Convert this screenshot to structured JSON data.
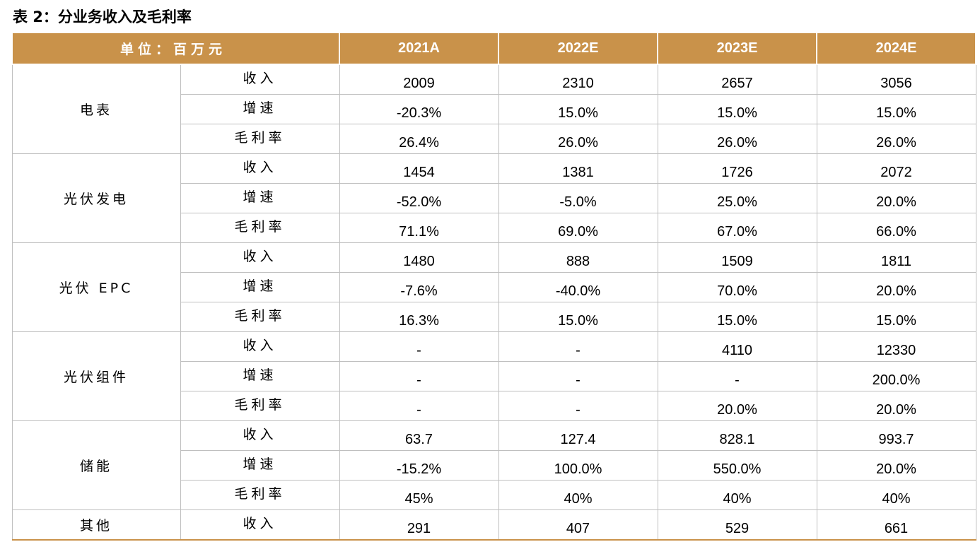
{
  "title": "表 2：分业务收入及毛利率",
  "header": {
    "unit_label": "单位：百万元",
    "years": [
      "2021A",
      "2022E",
      "2023E",
      "2024E"
    ]
  },
  "segments": [
    {
      "name": "电表",
      "rows": [
        {
          "metric": "收入",
          "values": [
            "2009",
            "2310",
            "2657",
            "3056"
          ]
        },
        {
          "metric": "增速",
          "values": [
            "-20.3%",
            "15.0%",
            "15.0%",
            "15.0%"
          ]
        },
        {
          "metric": "毛利率",
          "values": [
            "26.4%",
            "26.0%",
            "26.0%",
            "26.0%"
          ]
        }
      ]
    },
    {
      "name": "光伏发电",
      "rows": [
        {
          "metric": "收入",
          "values": [
            "1454",
            "1381",
            "1726",
            "2072"
          ]
        },
        {
          "metric": "增速",
          "values": [
            "-52.0%",
            "-5.0%",
            "25.0%",
            "20.0%"
          ]
        },
        {
          "metric": "毛利率",
          "values": [
            "71.1%",
            "69.0%",
            "67.0%",
            "66.0%"
          ]
        }
      ]
    },
    {
      "name": "光伏 EPC",
      "rows": [
        {
          "metric": "收入",
          "values": [
            "1480",
            "888",
            "1509",
            "1811"
          ]
        },
        {
          "metric": "增速",
          "values": [
            "-7.6%",
            "-40.0%",
            "70.0%",
            "20.0%"
          ]
        },
        {
          "metric": "毛利率",
          "values": [
            "16.3%",
            "15.0%",
            "15.0%",
            "15.0%"
          ]
        }
      ]
    },
    {
      "name": "光伏组件",
      "rows": [
        {
          "metric": "收入",
          "values": [
            "-",
            "-",
            "4110",
            "12330"
          ]
        },
        {
          "metric": "增速",
          "values": [
            "-",
            "-",
            "-",
            "200.0%"
          ]
        },
        {
          "metric": "毛利率",
          "values": [
            "-",
            "-",
            "20.0%",
            "20.0%"
          ]
        }
      ]
    },
    {
      "name": "储能",
      "rows": [
        {
          "metric": "收入",
          "values": [
            "63.7",
            "127.4",
            "828.1",
            "993.7"
          ]
        },
        {
          "metric": "增速",
          "values": [
            "-15.2%",
            "100.0%",
            "550.0%",
            "20.0%"
          ]
        },
        {
          "metric": "毛利率",
          "values": [
            "45%",
            "40%",
            "40%",
            "40%"
          ]
        }
      ]
    },
    {
      "name": "其他",
      "rows": [
        {
          "metric": "收入",
          "values": [
            "291",
            "407",
            "529",
            "661"
          ]
        }
      ]
    }
  ],
  "colors": {
    "header_bg": "#c9924a",
    "header_text": "#ffffff",
    "grid": "#bfbfbf"
  }
}
